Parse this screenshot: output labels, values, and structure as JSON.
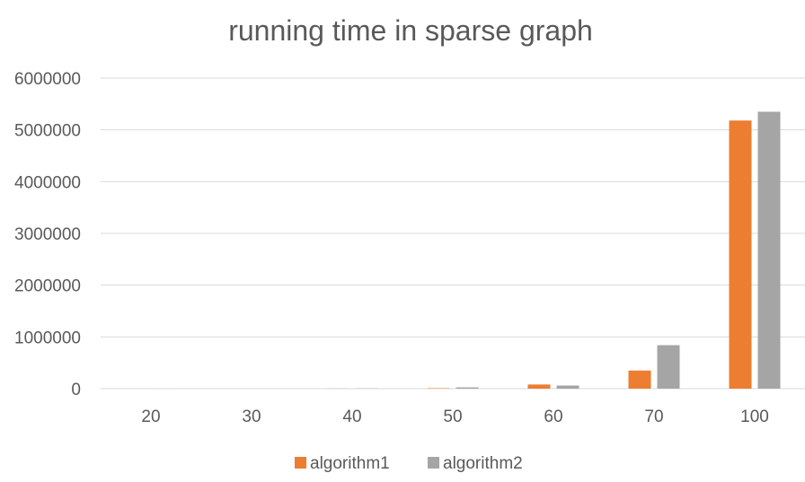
{
  "chart_data": {
    "type": "bar",
    "title": "running time in sparse graph",
    "xlabel": "",
    "ylabel": "",
    "categories": [
      "20",
      "30",
      "40",
      "50",
      "60",
      "70",
      "100"
    ],
    "series": [
      {
        "name": "algorithm1",
        "color": "#ed7d31",
        "values": [
          100,
          500,
          2000,
          9000,
          80000,
          350000,
          5180000
        ]
      },
      {
        "name": "algorithm2",
        "color": "#a5a5a5",
        "values": [
          200,
          1000,
          5000,
          25000,
          60000,
          840000,
          5350000
        ]
      }
    ],
    "ylim": [
      0,
      6000000
    ],
    "yticks": [
      "0",
      "1000000",
      "2000000",
      "3000000",
      "4000000",
      "5000000",
      "6000000"
    ],
    "grid": true,
    "legend_position": "bottom"
  }
}
